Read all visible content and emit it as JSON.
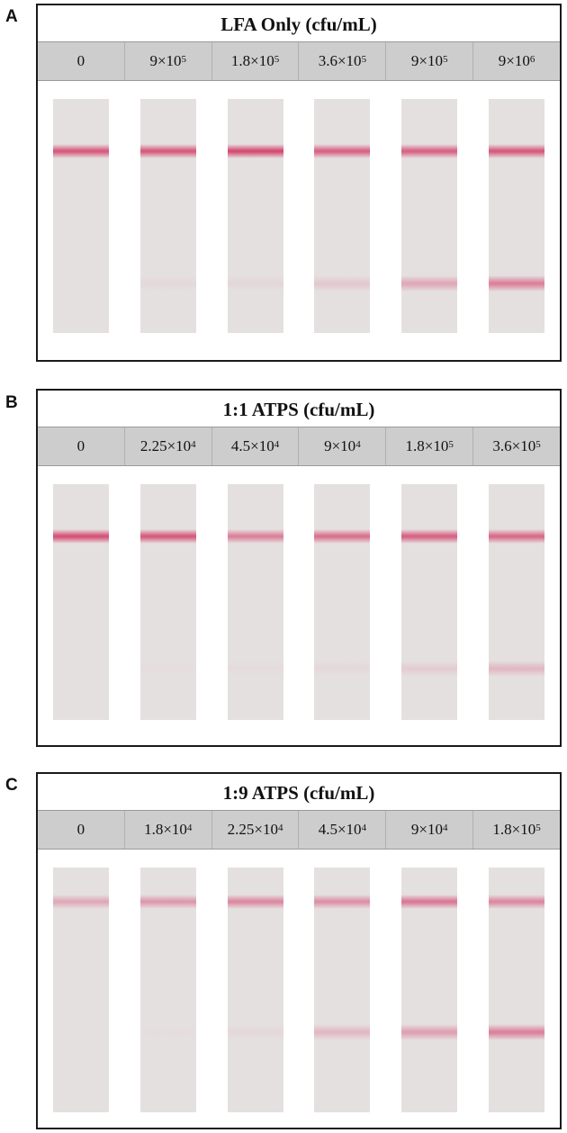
{
  "panels": [
    {
      "letter": "A",
      "title": "LFA Only (cfu/mL)",
      "lanes": [
        {
          "base": "0",
          "exp": ""
        },
        {
          "base": "9×10",
          "exp": "5"
        },
        {
          "base": "1.8×10",
          "exp": "5"
        },
        {
          "base": "3.6×10",
          "exp": "5"
        },
        {
          "base": "9×10",
          "exp": "5"
        },
        {
          "base": "9×10",
          "exp": "6"
        }
      ],
      "control_line_intensity": [
        0.85,
        0.85,
        0.95,
        0.8,
        0.8,
        0.85
      ],
      "test_line_intensity": [
        0.0,
        0.05,
        0.06,
        0.15,
        0.35,
        0.6
      ]
    },
    {
      "letter": "B",
      "title": "1:1 ATPS (cfu/mL)",
      "lanes": [
        {
          "base": "0",
          "exp": ""
        },
        {
          "base": "2.25×10",
          "exp": "4"
        },
        {
          "base": "4.5×10",
          "exp": "4"
        },
        {
          "base": "9×10",
          "exp": "4"
        },
        {
          "base": "1.8×10",
          "exp": "5"
        },
        {
          "base": "3.6×10",
          "exp": "5"
        }
      ],
      "control_line_intensity": [
        0.9,
        0.85,
        0.6,
        0.7,
        0.8,
        0.75
      ],
      "test_line_intensity": [
        0.0,
        0.02,
        0.03,
        0.05,
        0.12,
        0.25
      ]
    },
    {
      "letter": "C",
      "title": "1:9 ATPS (cfu/mL)",
      "lanes": [
        {
          "base": "0",
          "exp": ""
        },
        {
          "base": "1.8×10",
          "exp": "4"
        },
        {
          "base": "2.25×10",
          "exp": "4"
        },
        {
          "base": "4.5×10",
          "exp": "4"
        },
        {
          "base": "9×10",
          "exp": "4"
        },
        {
          "base": "1.8×10",
          "exp": "5"
        }
      ],
      "control_line_intensity": [
        0.35,
        0.45,
        0.55,
        0.5,
        0.65,
        0.55
      ],
      "test_line_intensity": [
        0.0,
        0.02,
        0.05,
        0.25,
        0.4,
        0.6
      ]
    }
  ],
  "colors": {
    "band": "#d4456e",
    "strip": "#e5e0e0",
    "header_bg": "#cdcdcd"
  }
}
